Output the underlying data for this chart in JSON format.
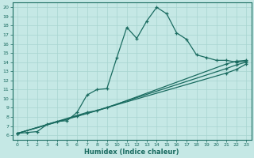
{
  "xlabel": "Humidex (Indice chaleur)",
  "bg_color": "#c5e8e5",
  "grid_color": "#a8d5d0",
  "line_color": "#1a6b60",
  "xlim": [
    -0.5,
    23.5
  ],
  "ylim": [
    5.5,
    20.5
  ],
  "xticks": [
    0,
    1,
    2,
    3,
    4,
    5,
    6,
    7,
    8,
    9,
    10,
    11,
    12,
    13,
    14,
    15,
    16,
    17,
    18,
    19,
    20,
    21,
    22,
    23
  ],
  "yticks": [
    6,
    7,
    8,
    9,
    10,
    11,
    12,
    13,
    14,
    15,
    16,
    17,
    18,
    19,
    20
  ],
  "series": [
    {
      "x": [
        0,
        1,
        2,
        3,
        4,
        5,
        6,
        7,
        8,
        9,
        10,
        11,
        12,
        13,
        14,
        15,
        16,
        17,
        18,
        19,
        20,
        21,
        22,
        23
      ],
      "y": [
        6.2,
        6.3,
        6.4,
        7.2,
        7.5,
        7.6,
        8.5,
        10.4,
        11.0,
        11.1,
        14.5,
        17.8,
        16.6,
        18.5,
        20.0,
        19.3,
        17.2,
        16.5,
        14.8,
        14.5,
        14.2,
        14.2,
        14.0,
        14.1
      ],
      "marker": true
    },
    {
      "x": [
        0,
        9,
        21,
        22,
        23
      ],
      "y": [
        6.2,
        9.0,
        13.8,
        14.1,
        14.2
      ],
      "marker": true
    },
    {
      "x": [
        0,
        7,
        8,
        21,
        22,
        23
      ],
      "y": [
        6.2,
        8.5,
        8.7,
        13.3,
        13.7,
        14.0
      ],
      "marker": true
    },
    {
      "x": [
        0,
        6,
        7,
        21,
        22,
        23
      ],
      "y": [
        6.2,
        8.1,
        8.4,
        12.8,
        13.2,
        13.8
      ],
      "marker": true
    }
  ]
}
